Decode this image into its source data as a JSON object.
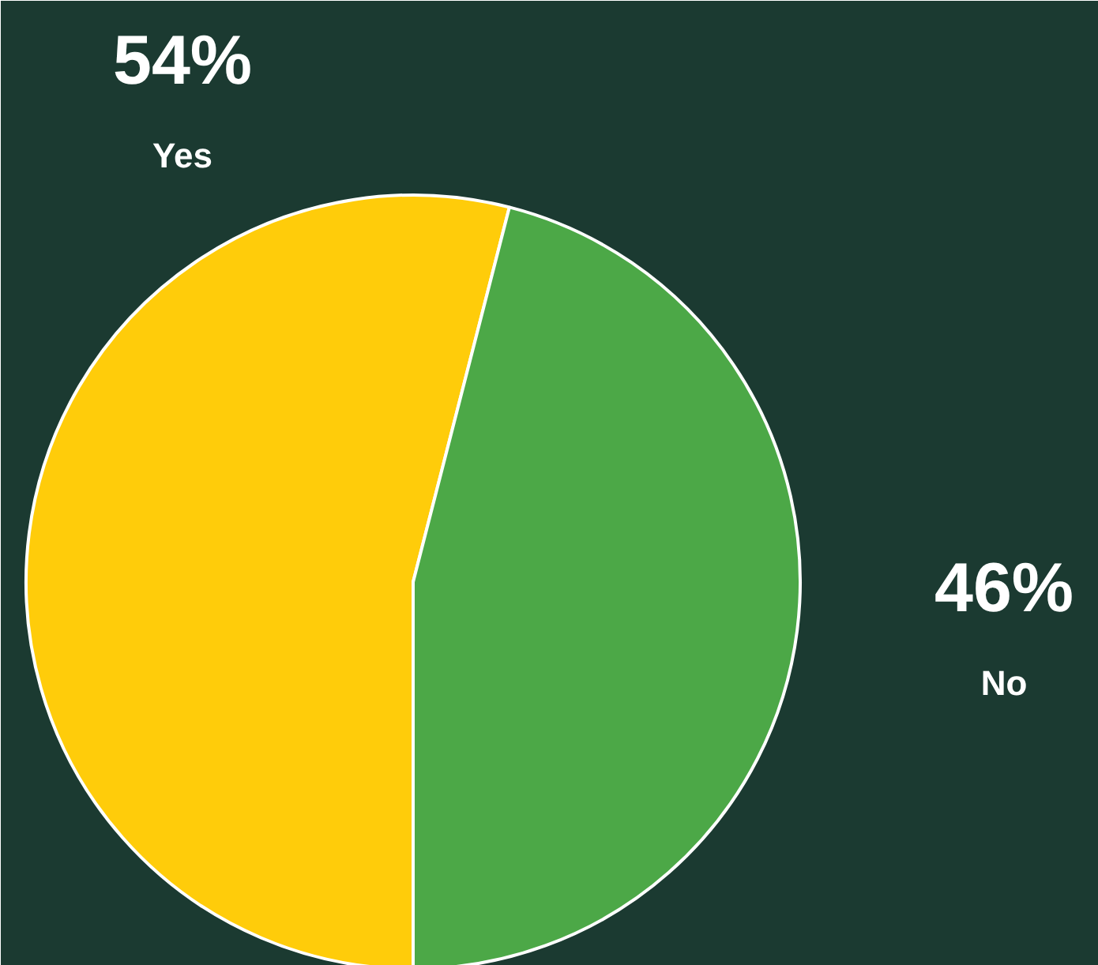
{
  "chart_data": {
    "type": "pie",
    "categories": [
      "Yes",
      "No"
    ],
    "values": [
      54,
      46
    ],
    "colors": [
      "#ffcc0a",
      "#4ca847"
    ],
    "value_labels": [
      "54%",
      "46%"
    ]
  }
}
